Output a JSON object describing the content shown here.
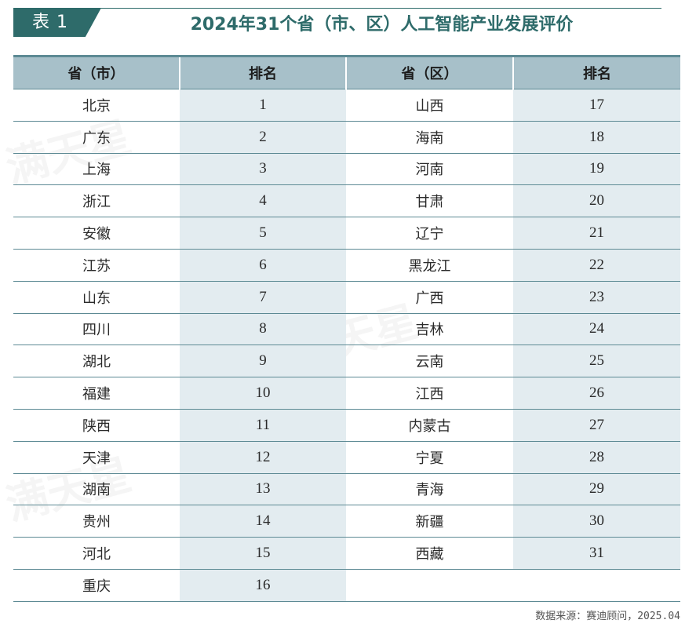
{
  "header": {
    "tag": "表 1",
    "title": "2024年31个省（市、区）人工智能产业发展评价"
  },
  "table": {
    "headers": [
      "省（市）",
      "排名",
      "省（区）",
      "排名"
    ],
    "rows": [
      [
        "北京",
        "1",
        "山西",
        "17"
      ],
      [
        "广东",
        "2",
        "海南",
        "18"
      ],
      [
        "上海",
        "3",
        "河南",
        "19"
      ],
      [
        "浙江",
        "4",
        "甘肃",
        "20"
      ],
      [
        "安徽",
        "5",
        "辽宁",
        "21"
      ],
      [
        "江苏",
        "6",
        "黑龙江",
        "22"
      ],
      [
        "山东",
        "7",
        "广西",
        "23"
      ],
      [
        "四川",
        "8",
        "吉林",
        "24"
      ],
      [
        "湖北",
        "9",
        "云南",
        "25"
      ],
      [
        "福建",
        "10",
        "江西",
        "26"
      ],
      [
        "陕西",
        "11",
        "内蒙古",
        "27"
      ],
      [
        "天津",
        "12",
        "宁夏",
        "28"
      ],
      [
        "湖南",
        "13",
        "青海",
        "29"
      ],
      [
        "贵州",
        "14",
        "新疆",
        "30"
      ],
      [
        "河北",
        "15",
        "西藏",
        "31"
      ],
      [
        "重庆",
        "16",
        "",
        ""
      ]
    ]
  },
  "source": "数据来源：赛迪顾问，2025.04",
  "watermark": "满天星",
  "colors": {
    "accent": "#2e6b6a",
    "header_bg": "#a7c0c9",
    "rank_col_bg": "#e3ecf0"
  }
}
